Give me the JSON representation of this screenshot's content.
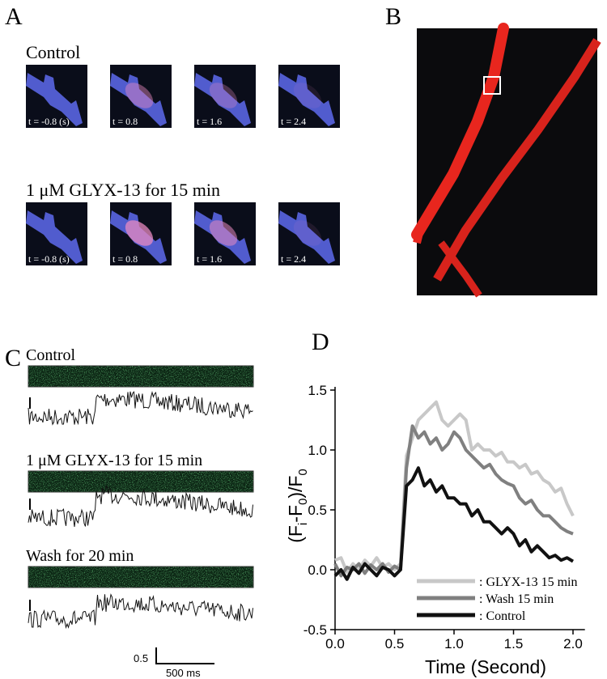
{
  "panels": {
    "A": {
      "label": "A",
      "groups": [
        {
          "title": "Control",
          "times": [
            "t = -0.8 (s)",
            "t = 0.8",
            "t = 1.6",
            "t = 2.4"
          ]
        },
        {
          "title": "1 μM GLYX-13 for 15 min",
          "times": [
            "t = -0.8 (s)",
            "t = 0.8",
            "t = 1.6",
            "t = 2.4"
          ]
        }
      ]
    },
    "B": {
      "label": "B"
    },
    "C": {
      "label": "C",
      "traces": [
        "Control",
        "1 μM GLYX-13 for 15 min",
        "Wash for 20 min"
      ],
      "scale_y": "0.5",
      "scale_x": "500 ms"
    },
    "D": {
      "label": "D"
    }
  },
  "chart_data": {
    "type": "line",
    "ylabel_parts": [
      "(F",
      "i",
      "-F",
      "0",
      ")/F",
      "0"
    ],
    "xlabel": "Time (Second)",
    "x": [
      0,
      0.05,
      0.1,
      0.15,
      0.2,
      0.25,
      0.3,
      0.35,
      0.4,
      0.45,
      0.5,
      0.55,
      0.6,
      0.65,
      0.7,
      0.75,
      0.8,
      0.85,
      0.9,
      0.95,
      1.0,
      1.05,
      1.1,
      1.15,
      1.2,
      1.25,
      1.3,
      1.35,
      1.4,
      1.45,
      1.5,
      1.55,
      1.6,
      1.65,
      1.7,
      1.75,
      1.8,
      1.85,
      1.9,
      1.95,
      2.0
    ],
    "series": [
      {
        "name": ": GLYX-13 15 min",
        "color": "#c8c8c8",
        "values": [
          0.08,
          0.1,
          -0.02,
          0.05,
          0.0,
          0.08,
          0.03,
          0.1,
          0.02,
          0.05,
          0.0,
          0.05,
          0.95,
          1.1,
          1.25,
          1.3,
          1.35,
          1.4,
          1.25,
          1.2,
          1.25,
          1.3,
          1.25,
          1.0,
          1.05,
          1.0,
          1.0,
          0.95,
          0.98,
          0.9,
          0.9,
          0.85,
          0.88,
          0.8,
          0.82,
          0.75,
          0.72,
          0.65,
          0.68,
          0.55,
          0.45
        ]
      },
      {
        "name": ": Wash 15 min",
        "color": "#808080",
        "values": [
          0.05,
          -0.05,
          0.02,
          0.0,
          0.05,
          -0.03,
          0.04,
          0.0,
          0.05,
          -0.02,
          0.03,
          0.0,
          0.85,
          1.2,
          1.1,
          1.15,
          1.05,
          1.1,
          1.0,
          1.05,
          1.15,
          1.1,
          1.0,
          0.95,
          0.9,
          0.85,
          0.88,
          0.8,
          0.75,
          0.72,
          0.7,
          0.6,
          0.55,
          0.58,
          0.5,
          0.45,
          0.45,
          0.4,
          0.35,
          0.32,
          0.3
        ]
      },
      {
        "name": ": Control",
        "color": "#111111",
        "values": [
          -0.05,
          0.0,
          -0.08,
          0.02,
          -0.03,
          0.05,
          0.0,
          -0.05,
          0.02,
          0.0,
          -0.05,
          0.0,
          0.7,
          0.75,
          0.85,
          0.7,
          0.75,
          0.65,
          0.7,
          0.6,
          0.6,
          0.55,
          0.55,
          0.45,
          0.5,
          0.4,
          0.4,
          0.35,
          0.3,
          0.35,
          0.3,
          0.2,
          0.25,
          0.15,
          0.2,
          0.15,
          0.1,
          0.12,
          0.08,
          0.1,
          0.07
        ]
      }
    ],
    "xlim": [
      0,
      2.1
    ],
    "ylim": [
      -0.5,
      1.5
    ],
    "xticks": [
      {
        "value": 0,
        "label": "0.0"
      },
      {
        "value": 0.5,
        "label": "0.5"
      },
      {
        "value": 1,
        "label": "1.0"
      },
      {
        "value": 1.5,
        "label": "1.5"
      },
      {
        "value": 2,
        "label": "2.0"
      }
    ],
    "yticks": [
      -0.5,
      {
        "value": 0,
        "label": "0.0"
      },
      0.5,
      {
        "value": 1,
        "label": "1.0"
      },
      1.5
    ]
  }
}
